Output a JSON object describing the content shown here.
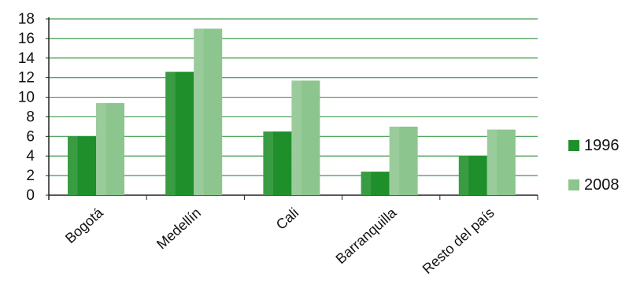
{
  "chart_data": {
    "type": "bar",
    "categories": [
      "Bogotá",
      "Medellín",
      "Cali",
      "Barranquilla",
      "Resto del país"
    ],
    "series": [
      {
        "name": "1996",
        "values": [
          6,
          12.6,
          6.5,
          2.4,
          4.0
        ],
        "color": "#1e8f2a"
      },
      {
        "name": "2008",
        "values": [
          9.4,
          17.0,
          11.7,
          7.0,
          6.7
        ],
        "color": "#8cc58e"
      }
    ],
    "y_ticks": [
      "0",
      "2",
      "4",
      "6",
      "8",
      "10",
      "12",
      "14",
      "16",
      "18"
    ],
    "ylim": [
      0,
      18
    ],
    "grid": true,
    "legend_position": "right",
    "title": "",
    "xlabel": "",
    "ylabel": ""
  }
}
